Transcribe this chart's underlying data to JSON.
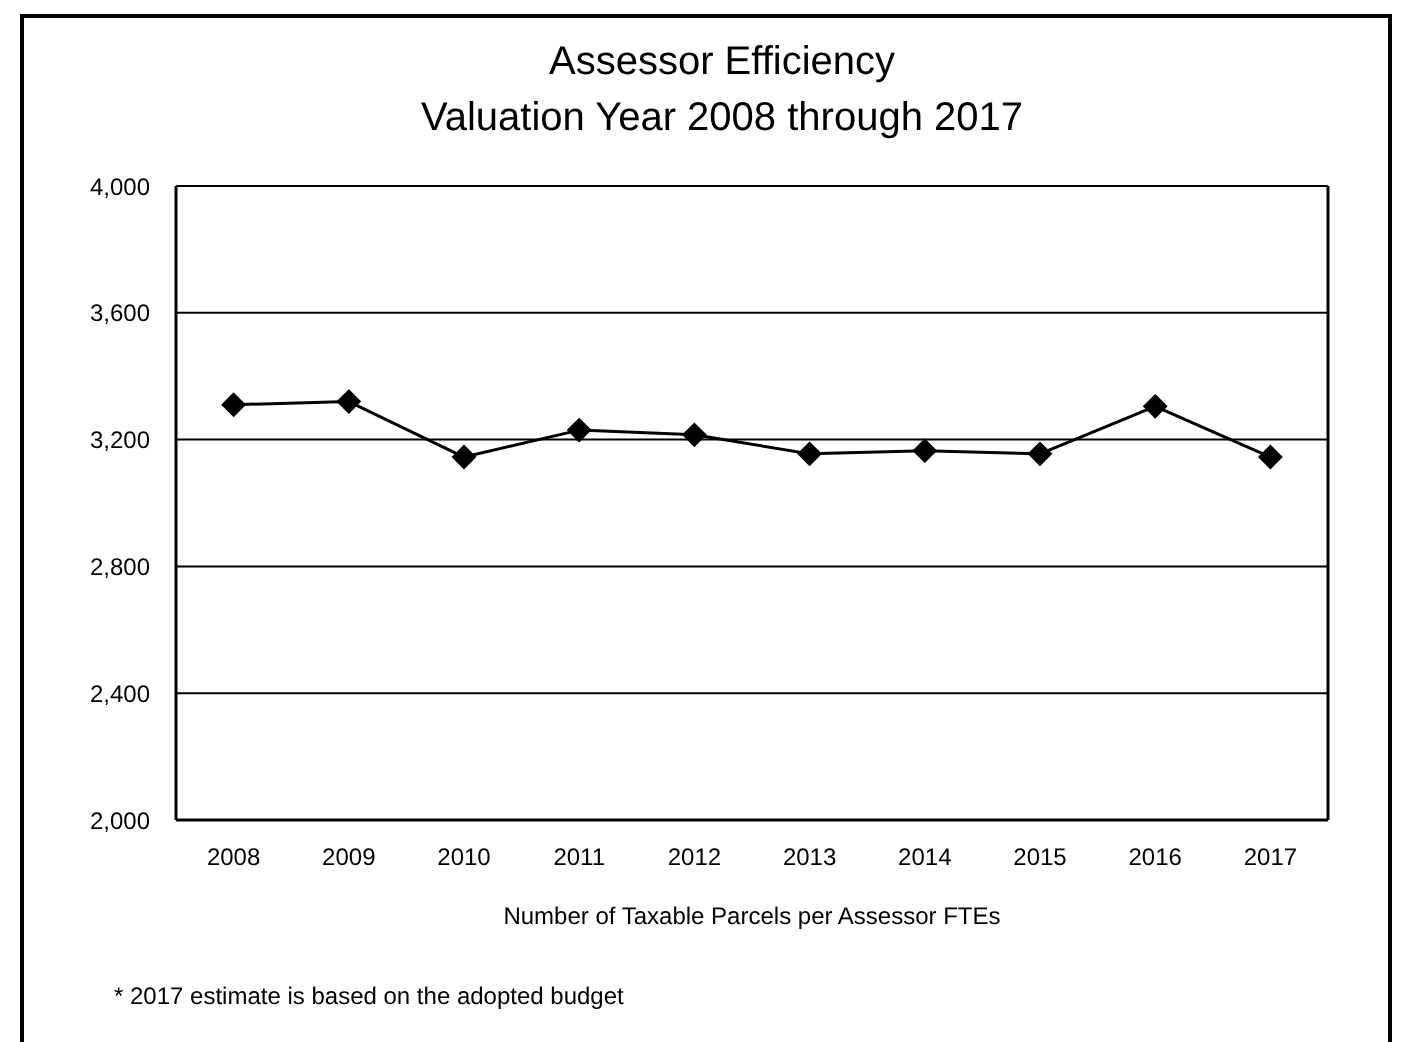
{
  "chart_data": {
    "type": "line",
    "title": "Assessor Efficiency",
    "subtitle": "Valuation Year 2008 through 2017",
    "xlabel": "Number of Taxable Parcels per Assessor FTEs",
    "categories": [
      "2008",
      "2009",
      "2010",
      "2011",
      "2012",
      "2013",
      "2014",
      "2015",
      "2016",
      "2017"
    ],
    "series": [
      {
        "color": "#000000",
        "values": [
          3310,
          3320,
          3145,
          3230,
          3215,
          3155,
          3165,
          3155,
          3305,
          3145
        ]
      }
    ],
    "ylim": [
      2000,
      4000
    ],
    "yticks": [
      {
        "value": 2000,
        "label": "2,000"
      },
      {
        "value": 2400,
        "label": "2,400"
      },
      {
        "value": 2800,
        "label": "2,800"
      },
      {
        "value": 3200,
        "label": "3,200"
      },
      {
        "value": 3600,
        "label": "3,600"
      },
      {
        "value": 4000,
        "label": "4,000"
      }
    ],
    "grid": "y",
    "marker": "diamond",
    "line_style": "solid",
    "annotations": [
      "* 2017 estimate is based on the adopted budget"
    ]
  }
}
